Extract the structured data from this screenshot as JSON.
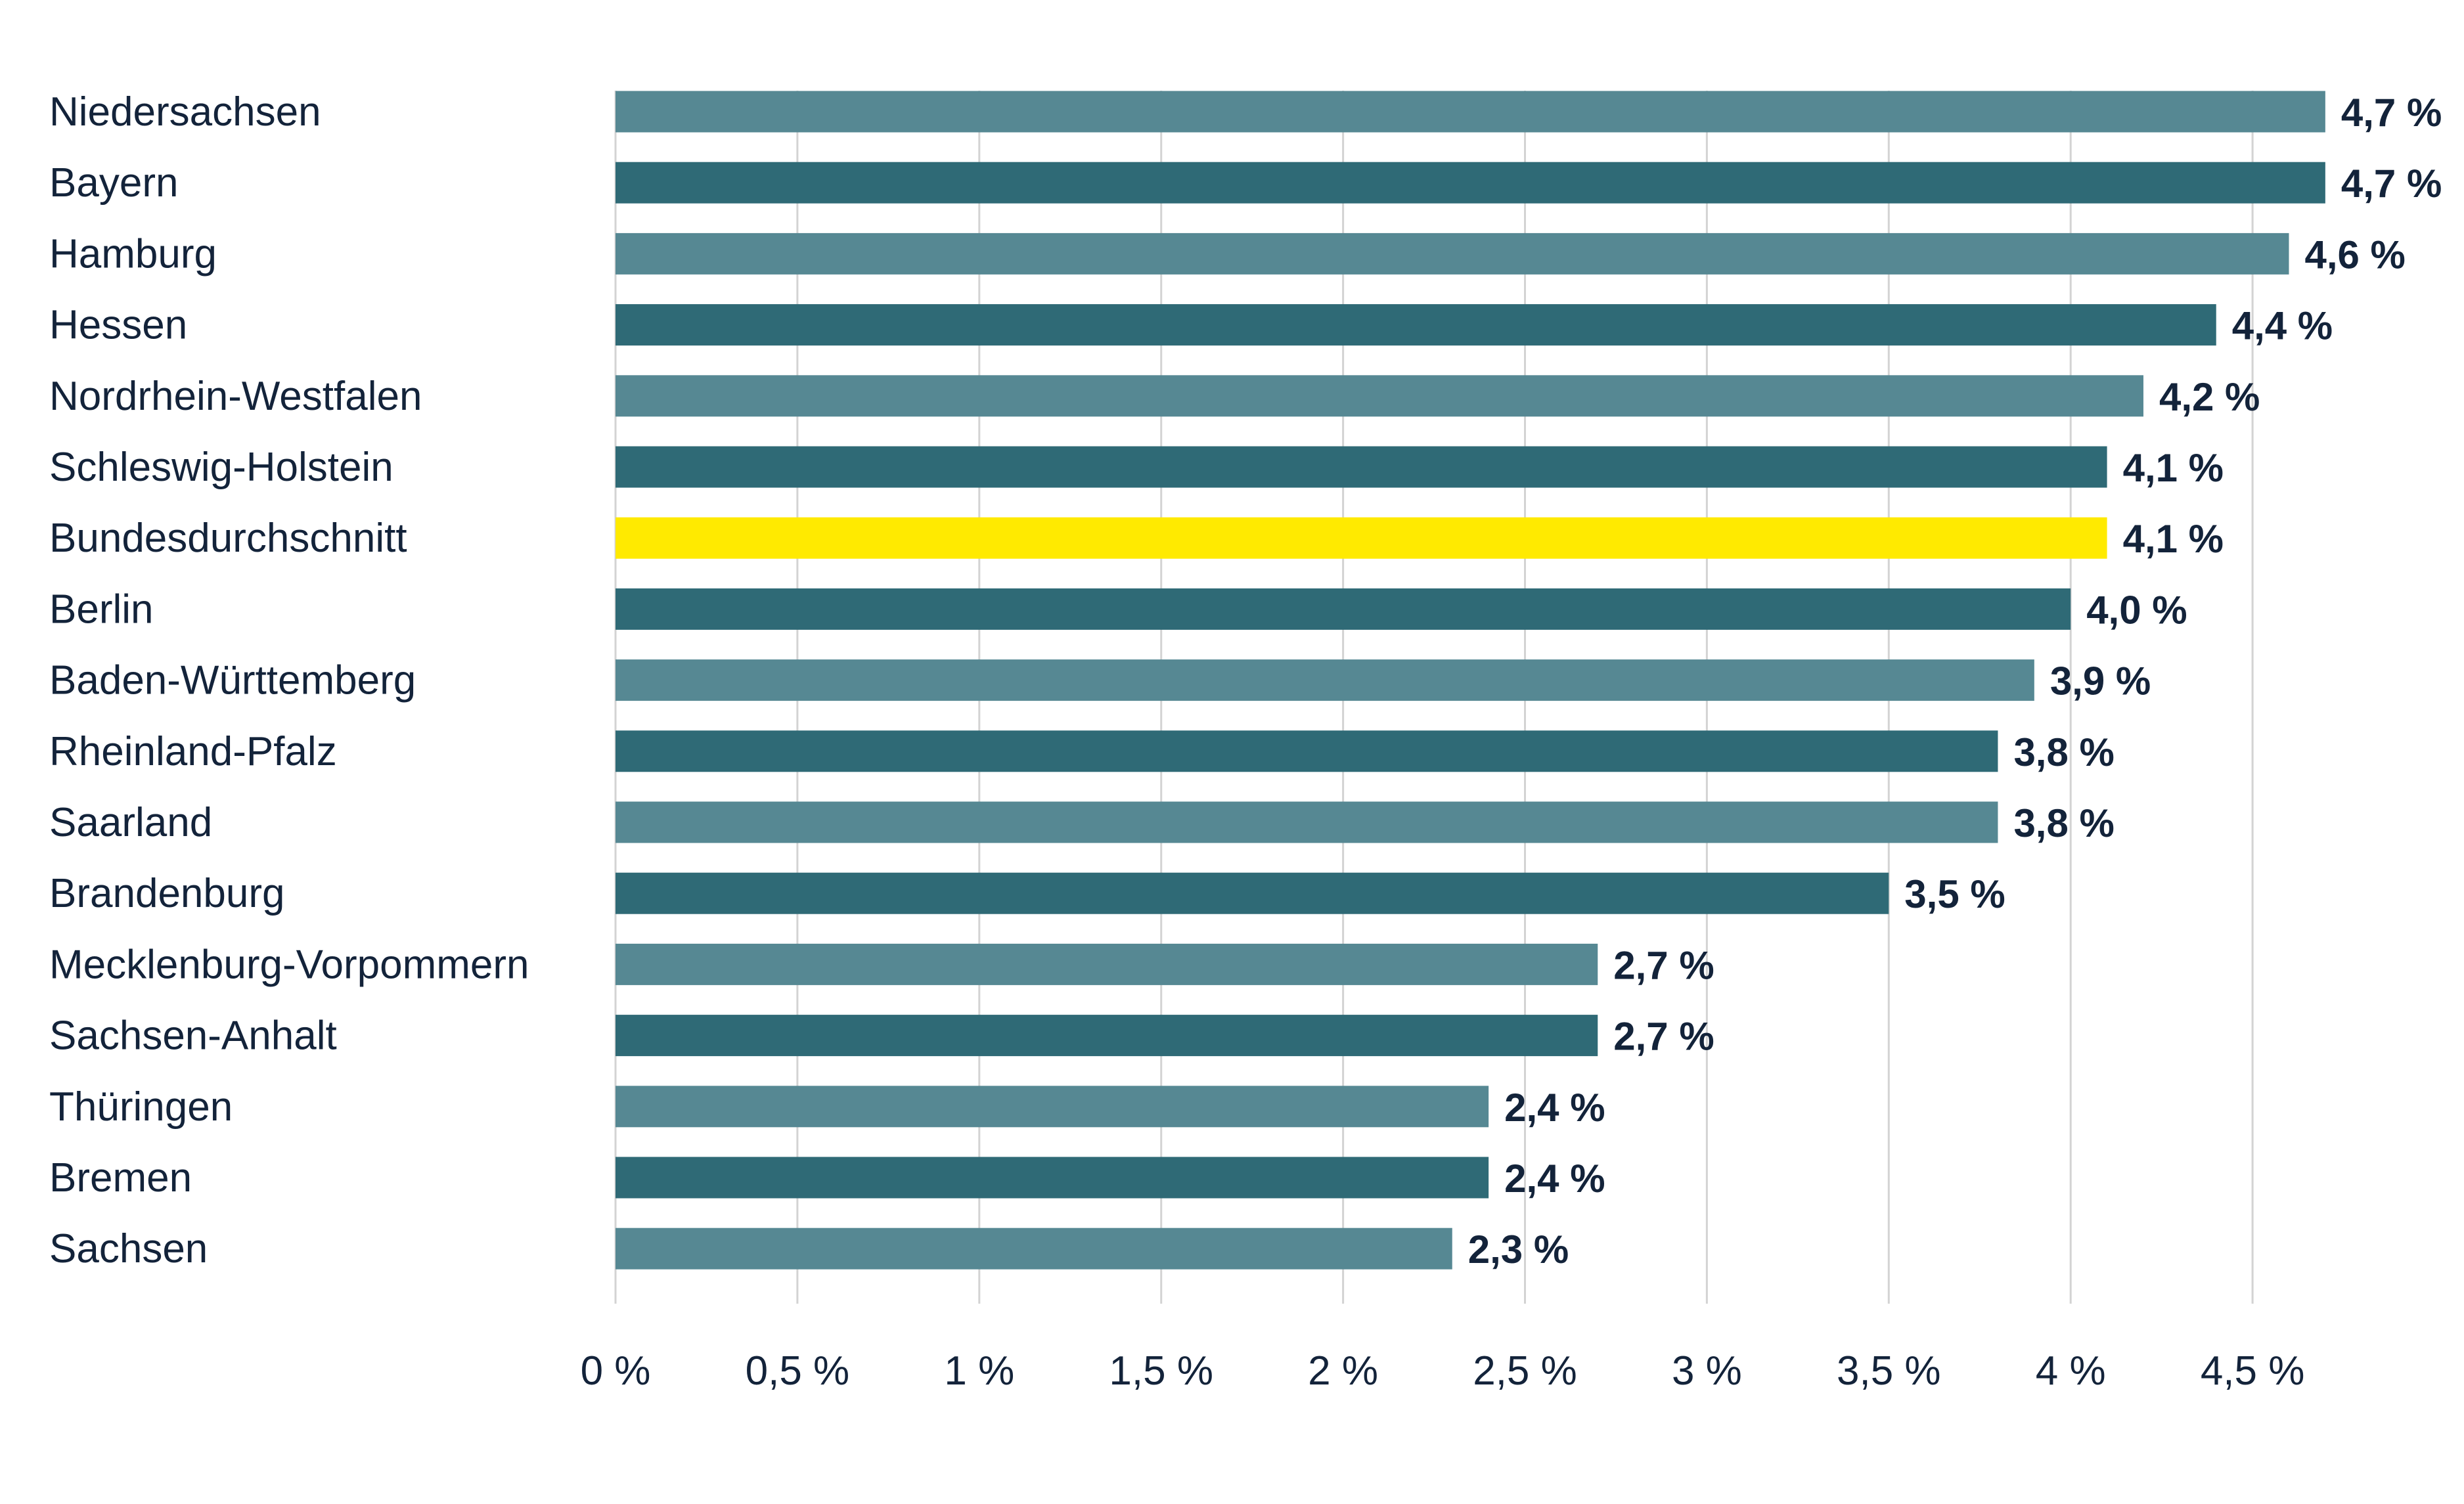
{
  "chart_data": {
    "type": "bar",
    "orientation": "horizontal",
    "title": "",
    "xlabel": "",
    "ylabel": "",
    "categories": [
      "Niedersachsen",
      "Bayern",
      "Hamburg",
      "Hessen",
      "Nordrhein-Westfalen",
      "Schleswig-Holstein",
      "Bundesdurchschnitt",
      "Berlin",
      "Baden-Württemberg",
      "Rheinland-Pfalz",
      "Saarland",
      "Brandenburg",
      "Mecklenburg-Vorpommern",
      "Sachsen-Anhalt",
      "Thüringen",
      "Bremen",
      "Sachsen"
    ],
    "values": [
      4.7,
      4.7,
      4.6,
      4.4,
      4.2,
      4.1,
      4.1,
      4.0,
      3.9,
      3.8,
      3.8,
      3.5,
      2.7,
      2.7,
      2.4,
      2.4,
      2.3
    ],
    "value_labels": [
      "4,7 %",
      "4,7 %",
      "4,6 %",
      "4,4 %",
      "4,2 %",
      "4,1 %",
      "4,1 %",
      "4,0 %",
      "3,9 %",
      "3,8 %",
      "3,8 %",
      "3,5 %",
      "2,7 %",
      "2,7 %",
      "2,4 %",
      "2,4 %",
      "2,3 %"
    ],
    "xlim": [
      0,
      4.5
    ],
    "xticks": [
      0,
      0.5,
      1,
      1.5,
      2,
      2.5,
      3,
      3.5,
      4,
      4.5
    ],
    "xtick_labels": [
      "0 %",
      "0,5 %",
      "1 %",
      "1,5 %",
      "2 %",
      "2,5 %",
      "3 %",
      "3,5 %",
      "4 %",
      "4,5 %"
    ],
    "grid": "vertical",
    "legend": "none",
    "colors": {
      "light": "#568893",
      "dark": "#2f6a76",
      "highlight": "#ffea00"
    },
    "bar_colors": [
      "light",
      "dark",
      "light",
      "dark",
      "light",
      "dark",
      "highlight",
      "dark",
      "light",
      "dark",
      "light",
      "dark",
      "light",
      "dark",
      "light",
      "dark",
      "light"
    ]
  }
}
